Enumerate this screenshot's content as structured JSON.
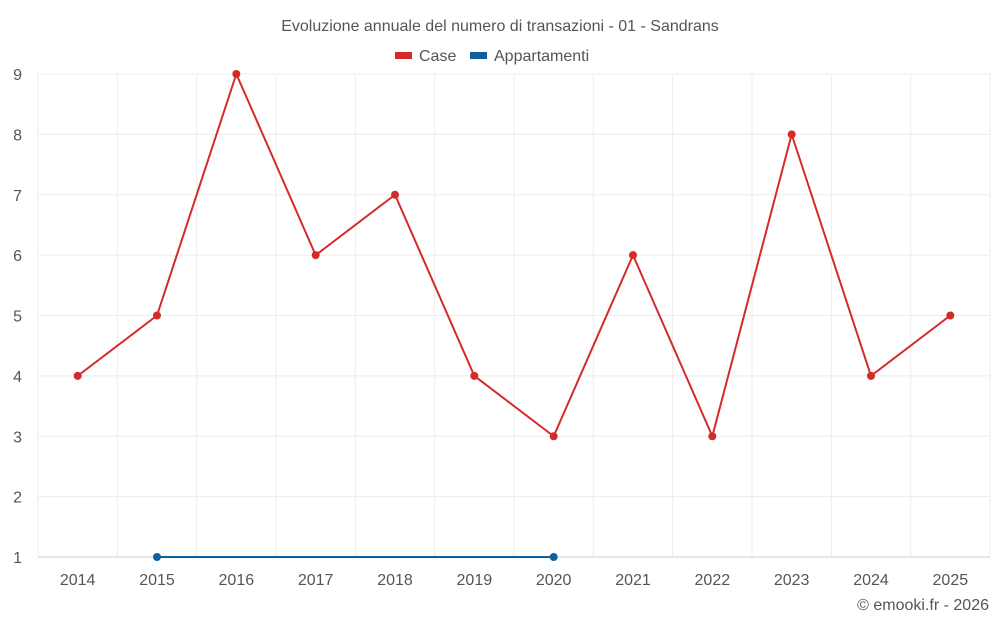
{
  "chart_data": {
    "type": "line",
    "title": "Evoluzione annuale del numero di transazioni - 01 - Sandrans",
    "categories": [
      "2014",
      "2015",
      "2016",
      "2017",
      "2018",
      "2019",
      "2020",
      "2021",
      "2022",
      "2023",
      "2024",
      "2025"
    ],
    "ylim": [
      1,
      9
    ],
    "yticks": [
      1,
      2,
      3,
      4,
      5,
      6,
      7,
      8,
      9
    ],
    "grid": true,
    "legend_position": "top-center",
    "series": [
      {
        "name": "Case",
        "color": "#d32a2a",
        "values": [
          4,
          5,
          9,
          6,
          7,
          4,
          3,
          6,
          3,
          8,
          4,
          5
        ]
      },
      {
        "name": "Appartamenti",
        "color": "#0f5f99",
        "values": [
          null,
          1,
          null,
          null,
          null,
          null,
          1,
          null,
          null,
          null,
          null,
          null
        ]
      }
    ],
    "credit": "© emooki.fr - 2026"
  }
}
